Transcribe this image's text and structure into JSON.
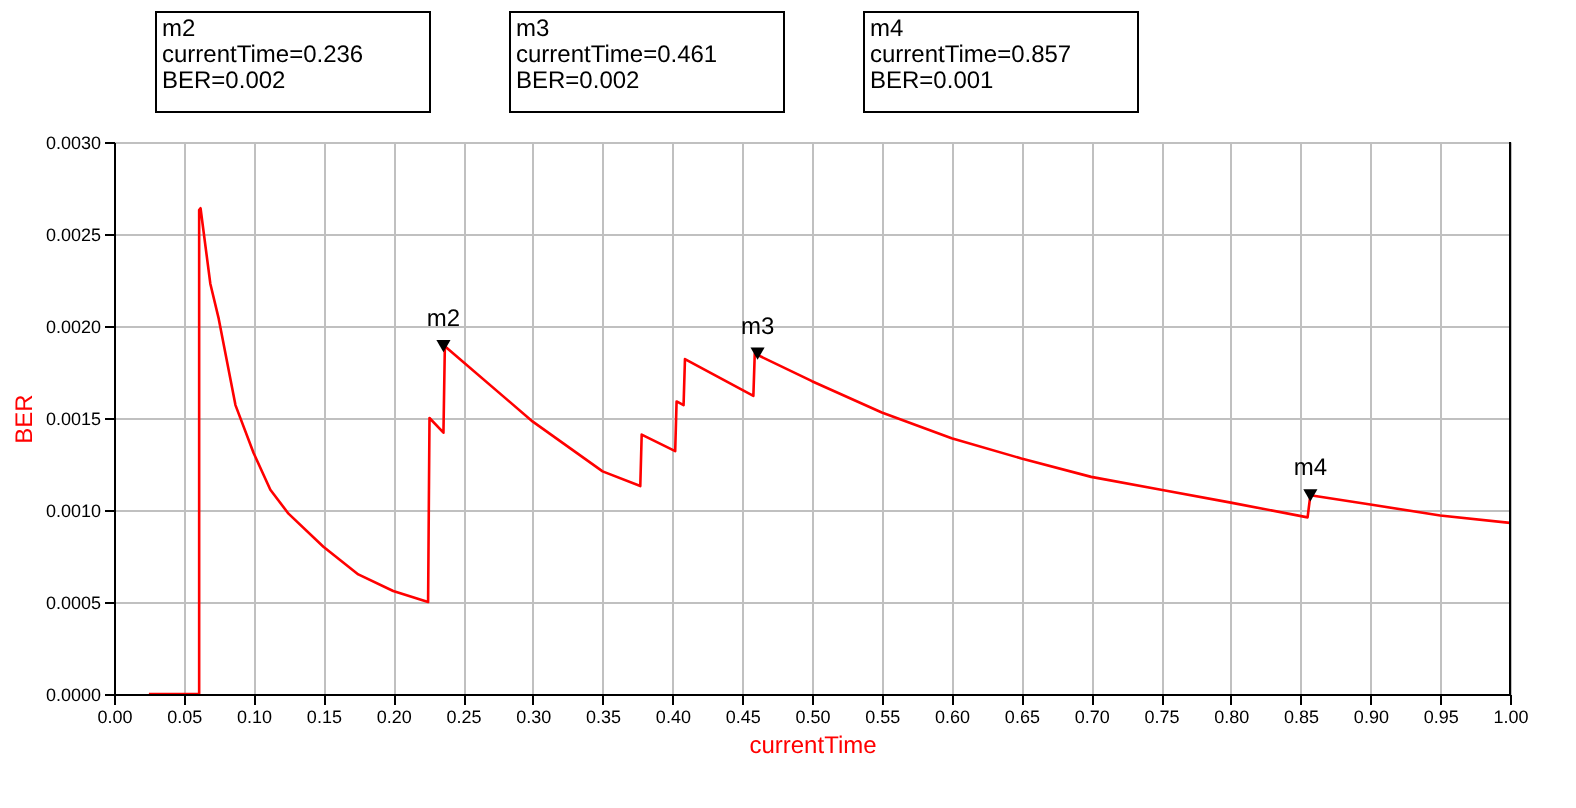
{
  "chart_data": {
    "type": "line",
    "xlabel": "currentTime",
    "ylabel": "BER",
    "series": [
      {
        "color": "#ff0000",
        "x": [
          0.025,
          0.061,
          0.061,
          0.062,
          0.069,
          0.075,
          0.087,
          0.1,
          0.112,
          0.125,
          0.15,
          0.175,
          0.2,
          0.225,
          0.226,
          0.236,
          0.237,
          0.3,
          0.35,
          0.377,
          0.378,
          0.402,
          0.403,
          0.408,
          0.409,
          0.458,
          0.459,
          0.5,
          0.55,
          0.6,
          0.65,
          0.7,
          0.75,
          0.8,
          0.855,
          0.857,
          0.9,
          0.95,
          1.0
        ],
        "values": [
          0,
          0,
          0.00263,
          0.00264,
          0.00223,
          0.00204,
          0.00157,
          0.00131,
          0.00111,
          0.00098,
          0.0008,
          0.00065,
          0.00056,
          0.0005,
          0.0015,
          0.00142,
          0.00189,
          0.00148,
          0.00121,
          0.00113,
          0.00141,
          0.00132,
          0.00159,
          0.00157,
          0.00182,
          0.00162,
          0.00185,
          0.0017,
          0.00153,
          0.00139,
          0.00128,
          0.00118,
          0.00111,
          0.00104,
          0.00096,
          0.00108,
          0.00103,
          0.00097,
          0.00093
        ]
      },
      {
        "type": "scatter",
        "marker": "triangle",
        "color": "#000000",
        "x": [
          0.236,
          0.461,
          0.857
        ],
        "values": [
          0.00189,
          0.00185,
          0.00108
        ]
      }
    ],
    "xlim": [
      0,
      1
    ],
    "ylim": [
      0,
      0.003
    ],
    "xticks": [
      {
        "value": 0,
        "label": "0.00"
      },
      {
        "value": 0.05,
        "label": "0.05"
      },
      {
        "value": 0.1,
        "label": "0.10"
      },
      {
        "value": 0.15,
        "label": "0.15"
      },
      {
        "value": 0.2,
        "label": "0.20"
      },
      {
        "value": 0.25,
        "label": "0.25"
      },
      {
        "value": 0.3,
        "label": "0.30"
      },
      {
        "value": 0.35,
        "label": "0.35"
      },
      {
        "value": 0.4,
        "label": "0.40"
      },
      {
        "value": 0.45,
        "label": "0.45"
      },
      {
        "value": 0.5,
        "label": "0.50"
      },
      {
        "value": 0.55,
        "label": "0.55"
      },
      {
        "value": 0.6,
        "label": "0.60"
      },
      {
        "value": 0.65,
        "label": "0.65"
      },
      {
        "value": 0.7,
        "label": "0.70"
      },
      {
        "value": 0.75,
        "label": "0.75"
      },
      {
        "value": 0.8,
        "label": "0.80"
      },
      {
        "value": 0.85,
        "label": "0.85"
      },
      {
        "value": 0.9,
        "label": "0.90"
      },
      {
        "value": 0.95,
        "label": "0.95"
      },
      {
        "value": 1,
        "label": "1.00"
      }
    ],
    "yticks": [
      {
        "value": 0,
        "label": "0.0000"
      },
      {
        "value": 0.0005,
        "label": "0.0005"
      },
      {
        "value": 0.001,
        "label": "0.0010"
      },
      {
        "value": 0.0015,
        "label": "0.0015"
      },
      {
        "value": 0.002,
        "label": "0.0020"
      },
      {
        "value": 0.0025,
        "label": "0.0025"
      },
      {
        "value": 0.003,
        "label": "0.0030"
      }
    ],
    "grid": true,
    "annotations": [
      {
        "text": "m2",
        "x": 0.236,
        "y": 0.00189
      },
      {
        "text": "m3",
        "x": 0.461,
        "y": 0.00185
      },
      {
        "text": "m4",
        "x": 0.857,
        "y": 0.00108
      },
      "m2\ncurrentTime=0.236\nBER=0.002",
      "m3\ncurrentTime=0.461\nBER=0.002",
      "m4\ncurrentTime=0.857\nBER=0.001"
    ]
  }
}
